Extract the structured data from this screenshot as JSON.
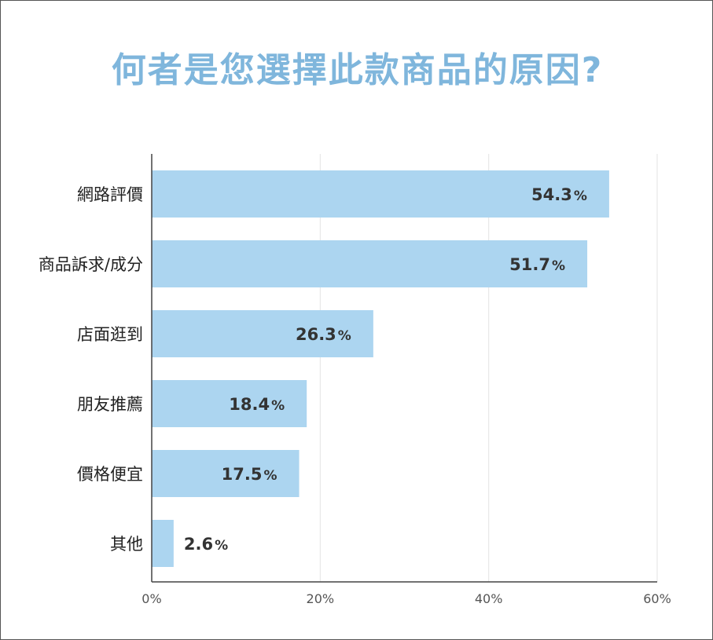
{
  "chart_data": {
    "type": "bar",
    "orientation": "horizontal",
    "title": "何者是您選擇此款商品的原因?",
    "categories": [
      "網路評價",
      "商品訴求/成分",
      "店面逛到",
      "朋友推薦",
      "價格便宜",
      "其他"
    ],
    "values": [
      54.3,
      51.7,
      26.3,
      18.4,
      17.5,
      2.6
    ],
    "value_suffix": "%",
    "xlim": [
      0,
      60
    ],
    "xticks": [
      0,
      20,
      40,
      60
    ],
    "xtick_labels": [
      "0%",
      "20%",
      "40%",
      "60%"
    ],
    "grid": true,
    "colors": {
      "bar": "#acd5f0",
      "title": "#7fb6dc",
      "grid": "#e3e3e3",
      "axis": "#444444"
    }
  }
}
